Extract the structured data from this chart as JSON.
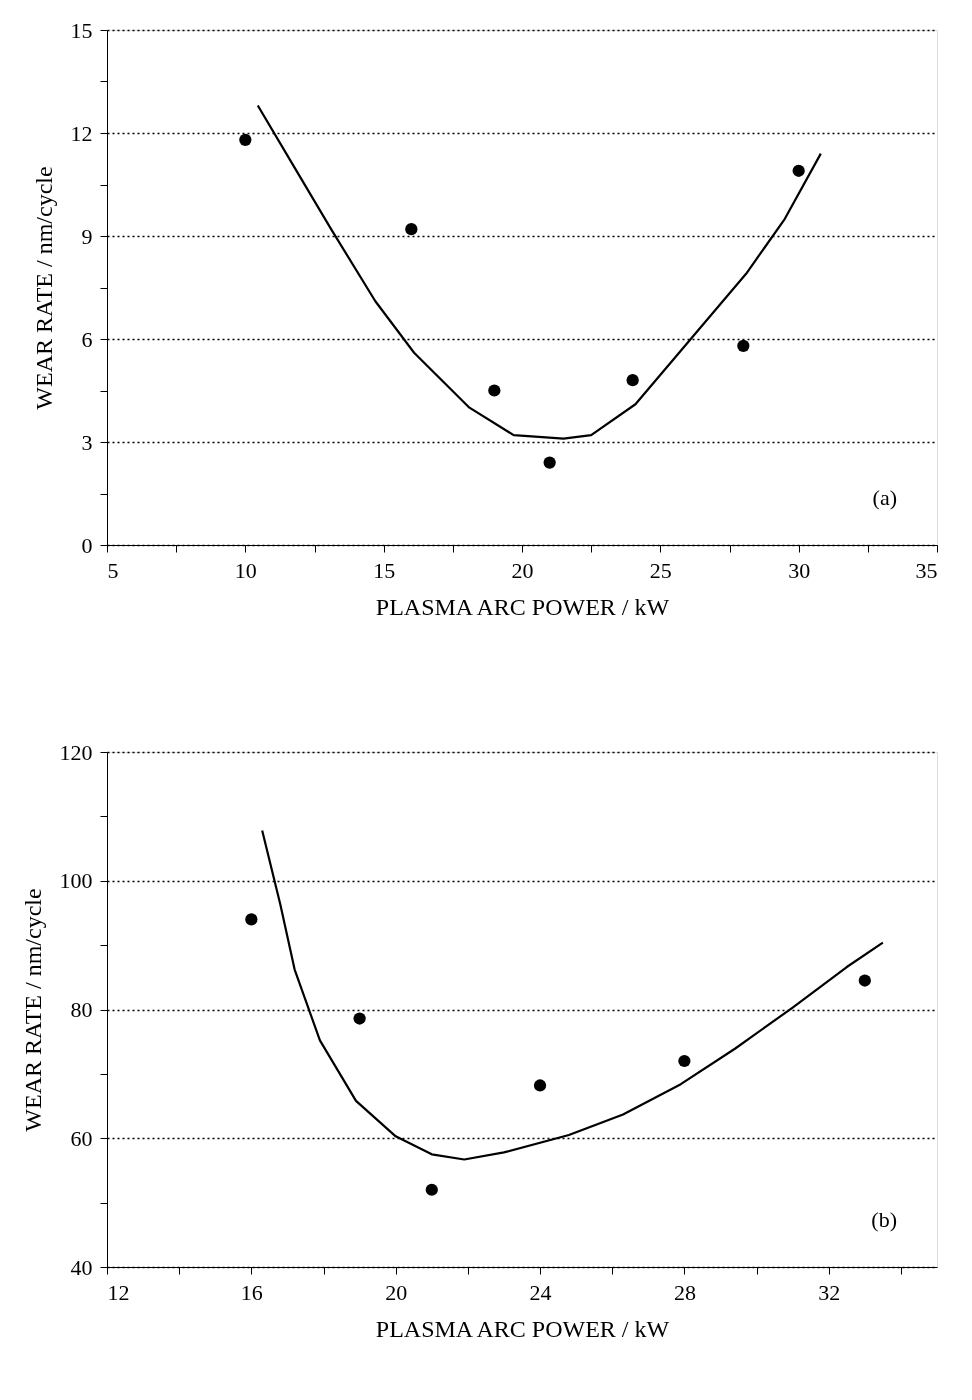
{
  "chart_data": [
    {
      "type": "scatter",
      "xlabel": "PLASMA ARC POWER / kW",
      "ylabel": "WEAR RATE / nm/cycle",
      "annotations": [
        "(a)"
      ],
      "xlim": [
        5,
        35
      ],
      "ylim": [
        0,
        15
      ],
      "xticks": [
        5,
        {
          "value": 7.5,
          "label": null
        },
        10,
        {
          "value": 12.5,
          "label": null
        },
        15,
        {
          "value": 17.5,
          "label": null
        },
        20,
        {
          "value": 22.5,
          "label": null
        },
        25,
        {
          "value": 27.5,
          "label": null
        },
        30,
        {
          "value": 32.5,
          "label": null
        },
        35
      ],
      "yticks": [
        0,
        {
          "value": 1.5,
          "label": null
        },
        3,
        {
          "value": 4.5,
          "label": null
        },
        6,
        {
          "value": 7.5,
          "label": null
        },
        9,
        {
          "value": 10.5,
          "label": null
        },
        12,
        {
          "value": 13.5,
          "label": null
        },
        15
      ],
      "grid": "y",
      "marker": "circle",
      "series": [
        {
          "color": "#000000",
          "x": [
            10,
            16,
            19,
            21,
            24,
            28,
            30
          ],
          "values": [
            11.8,
            9.2,
            4.5,
            2.4,
            4.8,
            5.8,
            10.9
          ]
        },
        {
          "type": "line",
          "color": "#000000",
          "line_style": "solid",
          "marker": "none",
          "x": [
            10.45,
            11.7,
            13.1,
            14.7,
            16.1,
            18.1,
            19.7,
            21.5,
            22.5,
            24.1,
            26.1,
            28.1,
            29.5,
            30.8
          ],
          "values": [
            12.8,
            11.1,
            9.2,
            7.1,
            5.6,
            4.0,
            3.2,
            3.1,
            3.2,
            4.1,
            6.0,
            7.9,
            9.5,
            11.4
          ]
        }
      ]
    },
    {
      "type": "scatter",
      "xlabel": "PLASMA ARC POWER / kW",
      "ylabel": "WEAR RATE / nm/cycle",
      "annotations": [
        "(b)"
      ],
      "xlim": [
        12,
        35
      ],
      "ylim": [
        40,
        120
      ],
      "xticks": [
        12,
        {
          "value": 14,
          "label": null
        },
        16,
        {
          "value": 18,
          "label": null
        },
        20,
        {
          "value": 22,
          "label": null
        },
        24,
        {
          "value": 26,
          "label": null
        },
        28,
        {
          "value": 30,
          "label": null
        },
        32,
        {
          "value": 34,
          "label": null
        }
      ],
      "yticks": [
        40,
        {
          "value": 50,
          "label": null
        },
        60,
        {
          "value": 70,
          "label": null
        },
        80,
        {
          "value": 90,
          "label": null
        },
        100,
        {
          "value": 110,
          "label": null
        },
        120
      ],
      "grid": "y",
      "marker": "circle",
      "series": [
        {
          "color": "#000000",
          "x": [
            16,
            19,
            21,
            24,
            28,
            33
          ],
          "values": [
            94,
            78.6,
            52,
            68.2,
            72,
            84.5
          ]
        },
        {
          "type": "line",
          "color": "#000000",
          "line_style": "solid",
          "marker": "none",
          "x": [
            16.3,
            16.8,
            17.2,
            17.9,
            18.9,
            20.0,
            21.0,
            21.9,
            23.0,
            24.8,
            26.3,
            27.9,
            29.4,
            31.0,
            32.5,
            33.5
          ],
          "values": [
            107.8,
            96.4,
            86.2,
            75.2,
            65.8,
            60.3,
            57.5,
            56.7,
            57.8,
            60.5,
            63.7,
            68.4,
            73.9,
            80.3,
            86.6,
            90.4
          ]
        }
      ]
    }
  ]
}
